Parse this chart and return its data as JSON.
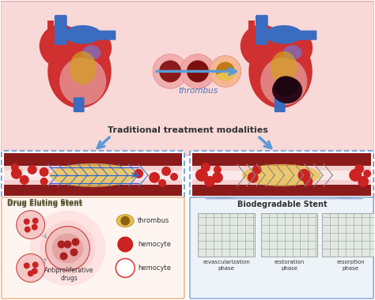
{
  "bg_color": "#f9d8d8",
  "title_text": "Traditional treatment modalities",
  "thrombus_label": "thrombus",
  "drug_stent_label": "Drug Eluting Stent",
  "biodeg_stent_label": "Biodegradable Stent",
  "antiproliferative_label": "Antiproliferative\ndrugs",
  "legend_thrombus": "thrombus",
  "legend_hemocyte1": "hemocyte",
  "legend_hemocyte2": "hemocyte",
  "phase1": "revascularization\nphase",
  "phase2": "restoration\nphase",
  "phase3": "resorption\nphase",
  "arrow_color": "#5b9bd5",
  "stent_border_color": "#5b9bd5",
  "blood_vessel_dark": "#8b1a1a",
  "blood_vessel_mid": "#c44444",
  "blood_vessel_light": "#f5d0d0",
  "red_cell_color": "#cc2222",
  "stent_mesh_color": "#aaaaaa",
  "yellow_color": "#e8c050",
  "heart_red": "#d03030",
  "heart_blue": "#3a6cc0",
  "heart_pink": "#e88080",
  "heart_yellow": "#d4a020"
}
